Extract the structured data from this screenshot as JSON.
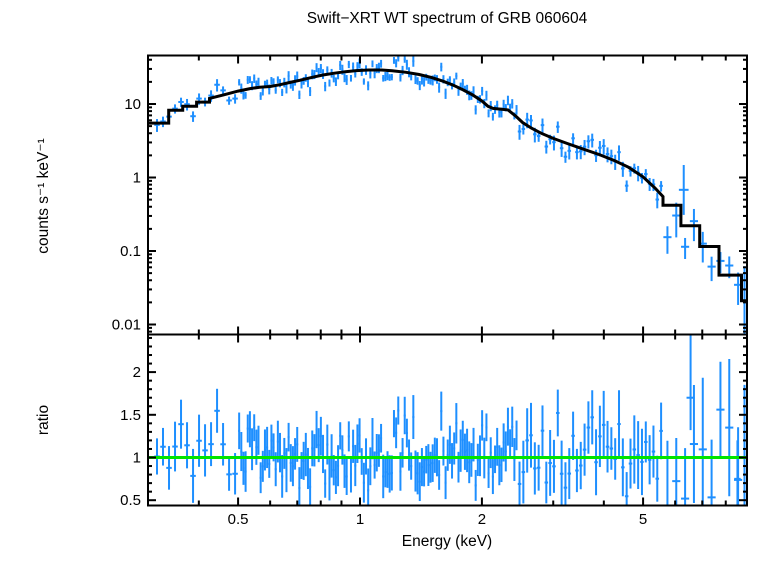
{
  "title": "Swift−XRT WT spectrum of GRB 060604",
  "xlabel": "Energy (keV)",
  "colors": {
    "data_blue": "#1E8FFF",
    "model_black": "#000000",
    "ratio_line_green": "#00E400",
    "frame": "#000000",
    "background": "#FFFFFF"
  },
  "chart_data": [
    {
      "type": "scatter",
      "panel": "top",
      "description": "X-ray spectrum: blue data points with error bars, black folded-model histogram",
      "ylabel": "counts s⁻¹ keV⁻¹",
      "xscale": "log",
      "yscale": "log",
      "xlim": [
        0.3,
        9.03
      ],
      "ylim": [
        0.0073,
        45.7
      ],
      "grid": false,
      "legend": "none",
      "xticks": [
        {
          "v": 0.5,
          "label": "0.5"
        },
        {
          "v": 1,
          "label": "1"
        },
        {
          "v": 2,
          "label": "2"
        },
        {
          "v": 5,
          "label": "5"
        }
      ],
      "yticks": [
        {
          "v": 10,
          "label": "10"
        },
        {
          "v": 1,
          "label": "1"
        },
        {
          "v": 0.1,
          "label": "0.1"
        },
        {
          "v": 0.01,
          "label": "0.01"
        }
      ],
      "model_curve": [
        [
          0.3,
          5.5
        ],
        [
          0.337,
          5.5
        ],
        [
          0.337,
          8.2
        ],
        [
          0.365,
          8.2
        ],
        [
          0.365,
          9.3
        ],
        [
          0.395,
          9.3
        ],
        [
          0.395,
          10.6
        ],
        [
          0.425,
          10.6
        ],
        [
          0.425,
          11.9
        ],
        [
          0.46,
          13.3
        ],
        [
          0.5,
          15.0
        ],
        [
          0.535,
          16.2
        ],
        [
          0.565,
          16.9
        ],
        [
          0.6,
          17.3
        ],
        [
          0.635,
          18.3
        ],
        [
          0.67,
          19.6
        ],
        [
          0.71,
          21.0
        ],
        [
          0.76,
          23.0
        ],
        [
          0.81,
          24.8
        ],
        [
          0.86,
          26.2
        ],
        [
          0.92,
          27.5
        ],
        [
          0.98,
          28.5
        ],
        [
          1.05,
          29.0
        ],
        [
          1.13,
          29.0
        ],
        [
          1.2,
          28.4
        ],
        [
          1.3,
          27.0
        ],
        [
          1.4,
          25.2
        ],
        [
          1.5,
          23.0
        ],
        [
          1.6,
          20.5
        ],
        [
          1.7,
          18.0
        ],
        [
          1.8,
          15.5
        ],
        [
          1.9,
          13.2
        ],
        [
          2.0,
          11.0
        ],
        [
          2.07,
          9.3
        ],
        [
          2.13,
          8.7
        ],
        [
          2.32,
          8.3
        ],
        [
          2.42,
          6.9
        ],
        [
          2.52,
          5.6
        ],
        [
          2.65,
          4.7
        ],
        [
          2.8,
          4.0
        ],
        [
          3.0,
          3.4
        ],
        [
          3.25,
          2.9
        ],
        [
          3.55,
          2.45
        ],
        [
          3.9,
          2.05
        ],
        [
          4.25,
          1.7
        ],
        [
          4.6,
          1.38
        ],
        [
          5.0,
          1.02
        ],
        [
          5.35,
          0.72
        ],
        [
          5.6,
          0.55
        ],
        [
          5.6,
          0.42
        ],
        [
          6.2,
          0.42
        ],
        [
          6.2,
          0.22
        ],
        [
          6.9,
          0.22
        ],
        [
          6.9,
          0.115
        ],
        [
          7.7,
          0.115
        ],
        [
          7.7,
          0.047
        ],
        [
          8.75,
          0.047
        ],
        [
          8.75,
          0.021
        ],
        [
          9.03,
          0.021
        ]
      ],
      "scatter_model": {
        "seed": 20060604,
        "note": "data points scatter about model_curve; segments give density and noise read from pixels",
        "segments": [
          {
            "e0": 0.31,
            "e1": 0.5,
            "n": 14,
            "sigma_log": 0.09,
            "err_rel": 0.16
          },
          {
            "e0": 0.5,
            "e1": 2.45,
            "n": 130,
            "sigma_log": 0.08,
            "err_rel": 0.13
          },
          {
            "e0": 2.45,
            "e1": 5.6,
            "n": 38,
            "sigma_log": 0.11,
            "err_rel": 0.2
          },
          {
            "e0": 5.6,
            "e1": 8.8,
            "n": 9,
            "sigma_log": 0.2,
            "err_rel": 0.42
          }
        ]
      },
      "outlier_points": [
        {
          "e": 6.3,
          "v": 0.68,
          "lo": 0.31,
          "hi": 1.48,
          "half_width_dex": 0.012
        },
        {
          "e": 8.9,
          "v": 0.021,
          "lo": 0.006,
          "hi": 0.062,
          "half_width_dex": 0.006
        }
      ]
    },
    {
      "type": "scatter",
      "panel": "bottom",
      "description": "data/model ratio, blue error bars about green unity line",
      "ylabel": "ratio",
      "xscale": "log",
      "yscale": "linear",
      "xlim": [
        0.3,
        9.03
      ],
      "ylim": [
        0.44,
        2.44
      ],
      "reference_line": 1.0,
      "grid": false,
      "yticks": [
        {
          "v": 2,
          "label": "2"
        },
        {
          "v": 1.5,
          "label": "1.5"
        },
        {
          "v": 1,
          "label": "1"
        },
        {
          "v": 0.5,
          "label": "0.5"
        }
      ],
      "ratio_error_scale": 1.6,
      "low_e_bias": 1.07,
      "outlier_points": [
        {
          "e": 6.55,
          "r": 1.7,
          "lo": 1.32,
          "hi": 2.6,
          "half_width_dex": 0.01
        },
        {
          "e": 8.9,
          "r": 1.0,
          "lo": 0.4,
          "hi": 1.85,
          "half_width_dex": 0.006
        },
        {
          "e": 8.55,
          "r": 0.75,
          "lo": 0.3,
          "hi": 1.2,
          "half_width_dex": 0.008
        }
      ]
    }
  ]
}
